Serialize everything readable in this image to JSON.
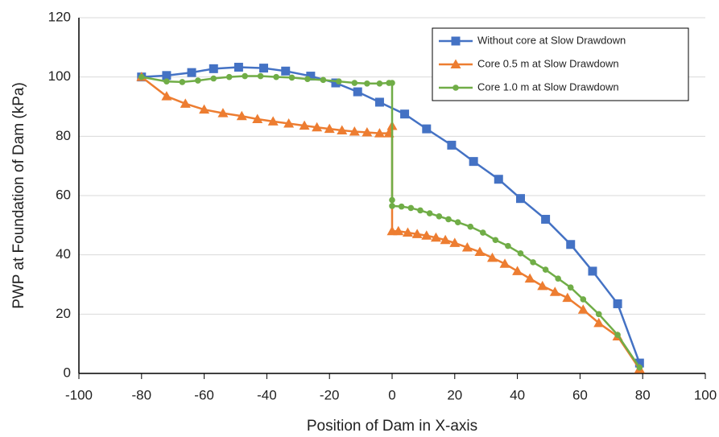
{
  "chart_data": {
    "type": "line",
    "xlabel": "Position of Dam in X-axis",
    "ylabel": "PWP at Foundation of Dam (kPa)",
    "xlim": [
      -100,
      100
    ],
    "xticks": [
      -100,
      -80,
      -60,
      -40,
      -20,
      0,
      20,
      40,
      60,
      80,
      100
    ],
    "ylim": [
      0,
      120
    ],
    "yticks": [
      0,
      20,
      40,
      60,
      80,
      100,
      120
    ],
    "grid": true,
    "legend": "upper right",
    "series": [
      {
        "name": "Without core at Slow Drawdown",
        "color": "#4472c4",
        "marker": "square",
        "x": [
          -80,
          -72,
          -64,
          -57,
          -49,
          -41,
          -34,
          -26,
          -18,
          -11,
          -4,
          4,
          11,
          19,
          26,
          34,
          41,
          49,
          57,
          64,
          72,
          79
        ],
        "values": [
          100,
          100.5,
          101.5,
          102.8,
          103.3,
          103,
          102,
          100.3,
          98,
          95,
          91.5,
          87.5,
          82.5,
          77,
          71.5,
          65.5,
          59,
          52,
          43.5,
          34.5,
          23.5,
          3.5
        ]
      },
      {
        "name": "Core 0.5 m at Slow Drawdown",
        "color": "#ed7d31",
        "marker": "triangle",
        "x": [
          -80,
          -72,
          -66,
          -60,
          -54,
          -48,
          -43,
          -38,
          -33,
          -28,
          -24,
          -20,
          -16,
          -12,
          -8,
          -4,
          -1,
          0,
          0,
          2,
          5,
          8,
          11,
          14,
          17,
          20,
          24,
          28,
          32,
          36,
          40,
          44,
          48,
          52,
          56,
          61,
          66,
          72,
          79
        ],
        "values": [
          100,
          93.5,
          91,
          89,
          87.8,
          86.8,
          85.8,
          85,
          84.3,
          83.6,
          83,
          82.5,
          82,
          81.6,
          81.3,
          81,
          81,
          83.5,
          48,
          48,
          47.5,
          47,
          46.5,
          45.8,
          45,
          44,
          42.5,
          41,
          39,
          37,
          34.5,
          32,
          29.5,
          27.5,
          25.5,
          21.5,
          17,
          12.5,
          1.5
        ]
      },
      {
        "name": "Core 1.0 m at Slow Drawdown",
        "color": "#70ad47",
        "marker": "circle",
        "x": [
          -80,
          -72,
          -67,
          -62,
          -57,
          -52,
          -47,
          -42,
          -37,
          -32,
          -27,
          -22,
          -17,
          -12,
          -8,
          -4,
          -1,
          0,
          0,
          0,
          3,
          6,
          9,
          12,
          15,
          18,
          21,
          25,
          29,
          33,
          37,
          41,
          45,
          49,
          53,
          57,
          61,
          66,
          72,
          79
        ],
        "values": [
          100,
          98.5,
          98.3,
          98.8,
          99.5,
          100,
          100.3,
          100.3,
          100,
          99.8,
          99.3,
          99,
          98.5,
          98,
          97.8,
          97.8,
          98,
          98,
          58.5,
          56.5,
          56.3,
          55.8,
          55,
          54,
          53,
          52,
          51,
          49.5,
          47.5,
          45,
          43,
          40.5,
          37.5,
          35,
          32,
          29,
          25,
          20,
          13,
          2
        ]
      }
    ]
  }
}
